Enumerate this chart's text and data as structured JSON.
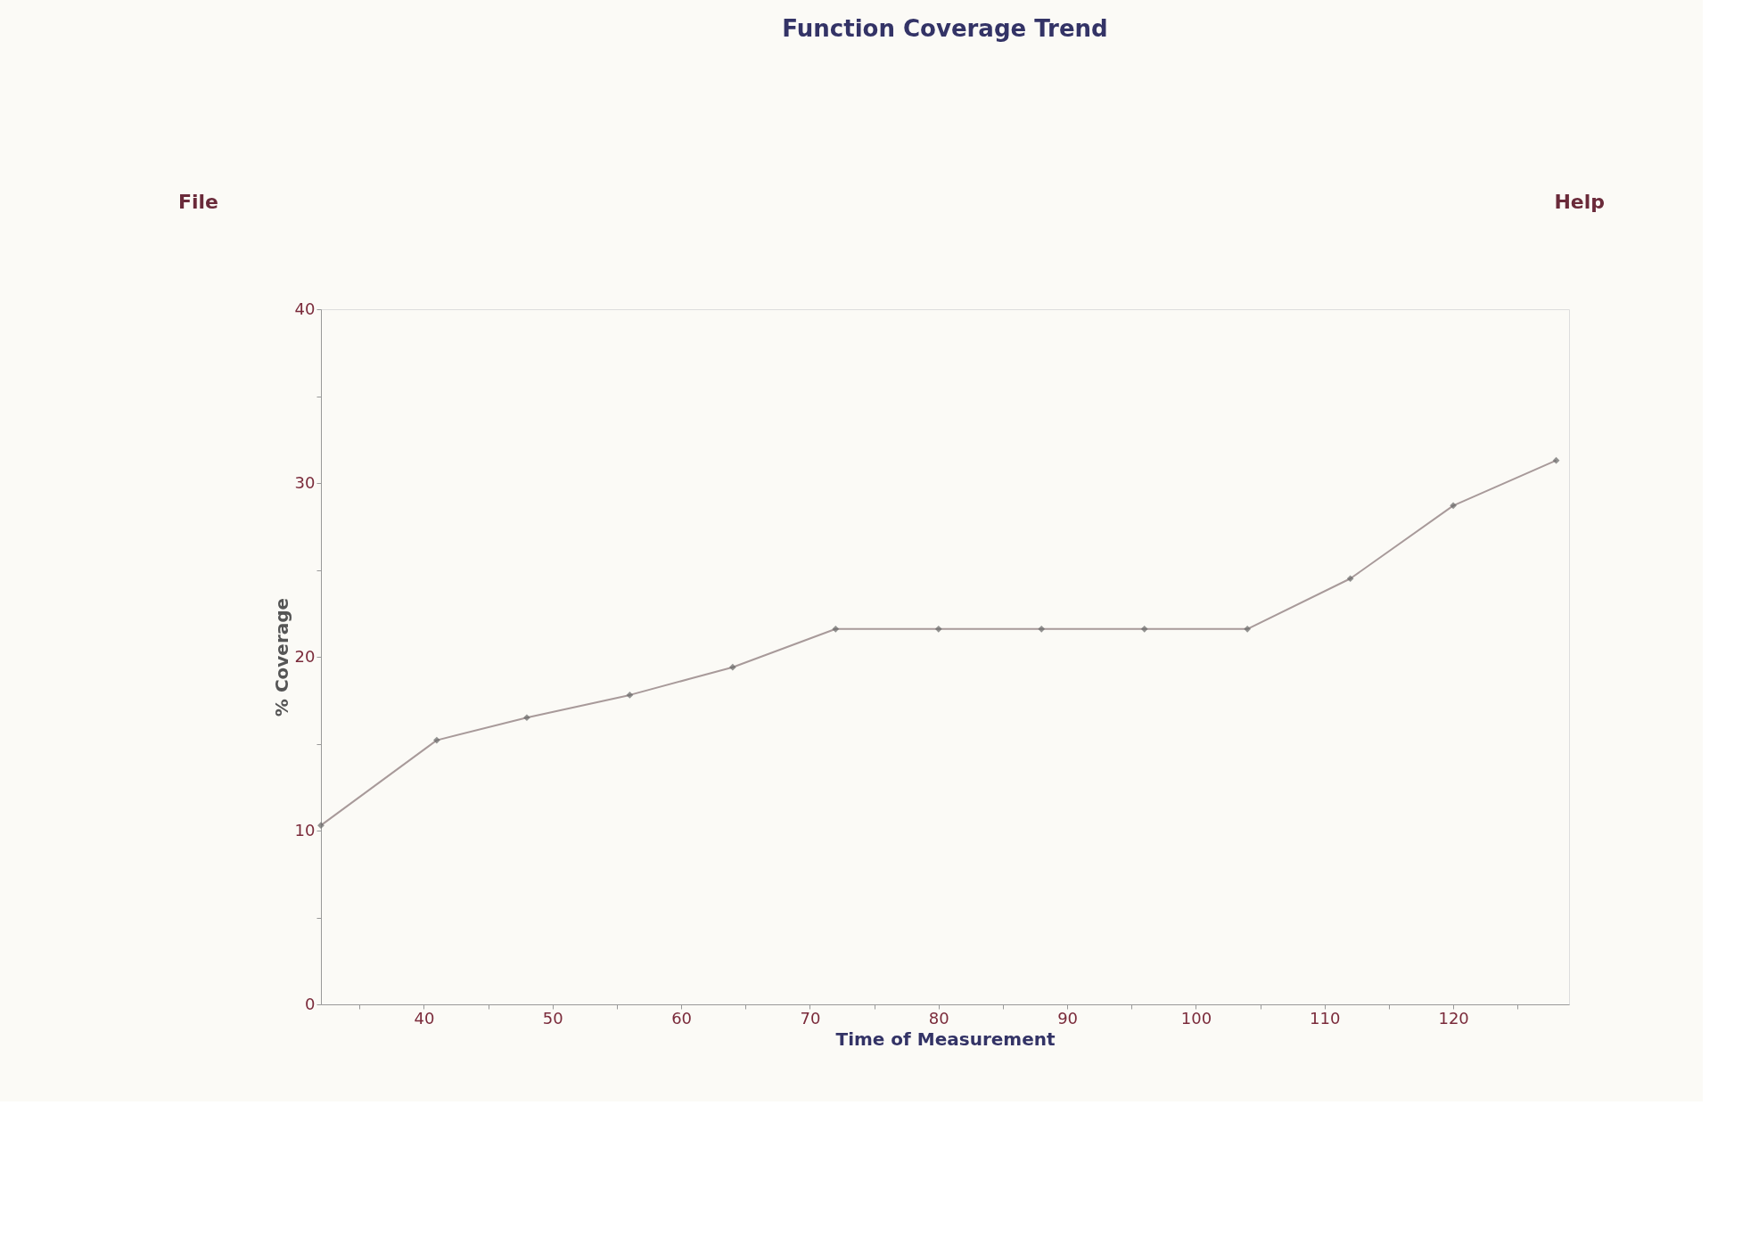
{
  "chart_data": {
    "type": "line",
    "title": "Function Coverage Trend",
    "xlabel": "Time of Measurement",
    "ylabel": "% Coverage",
    "annotations": [
      "File",
      "Help"
    ],
    "x": [
      32,
      41,
      48,
      56,
      64,
      72,
      80,
      88,
      96,
      104,
      112,
      120,
      128
    ],
    "series": [
      {
        "color": "#a89a9a",
        "values": [
          10.3,
          15.2,
          16.5,
          17.8,
          19.4,
          21.6,
          21.6,
          21.6,
          21.6,
          21.6,
          24.5,
          28.7,
          31.3
        ]
      }
    ],
    "xlim": [
      32,
      129
    ],
    "xticks": [
      {
        "value": 35,
        "label": null
      },
      40,
      {
        "value": 45,
        "label": null
      },
      50,
      {
        "value": 55,
        "label": null
      },
      60,
      {
        "value": 65,
        "label": null
      },
      70,
      {
        "value": 75,
        "label": null
      },
      80,
      {
        "value": 85,
        "label": null
      },
      90,
      {
        "value": 95,
        "label": null
      },
      100,
      {
        "value": 105,
        "label": null
      },
      110,
      {
        "value": 115,
        "label": null
      },
      120,
      {
        "value": 125,
        "label": null
      }
    ],
    "ylim": [
      0,
      40
    ],
    "yticks": [
      0,
      {
        "value": 5,
        "label": null
      },
      10,
      {
        "value": 15,
        "label": null
      },
      20,
      {
        "value": 25,
        "label": null
      },
      30,
      {
        "value": 35,
        "label": null
      },
      40
    ],
    "grid": false,
    "marker": "diamond",
    "line_style": "solid"
  }
}
